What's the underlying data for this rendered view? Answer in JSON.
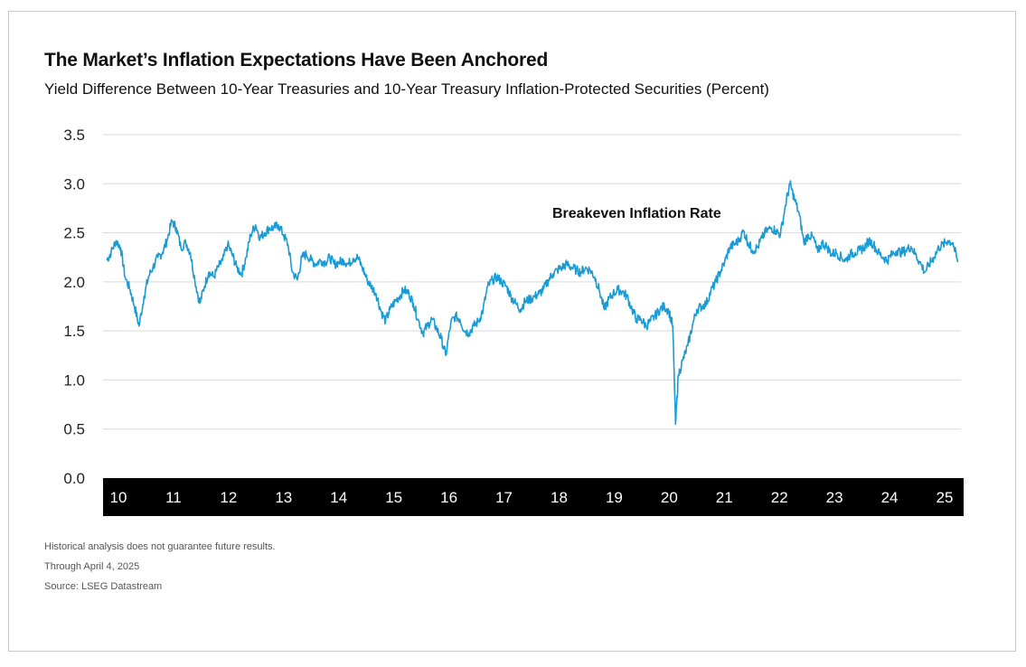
{
  "title": "The Market’s Inflation Expectations Have Been Anchored",
  "subtitle": "Yield Difference Between 10-Year Treasuries and 10-Year Treasury Inflation-Protected Securities (Percent)",
  "notes": {
    "disclaimer": "Historical analysis does not guarantee future results.",
    "through": "Through April 4, 2025",
    "source": "Source: LSEG Datastream"
  },
  "colors": {
    "line": "#1a9bd3",
    "axis_band": "#000000",
    "grid": "#d9d9d9"
  },
  "chart_data": {
    "type": "line",
    "title": "The Market’s Inflation Expectations Have Been Anchored",
    "subtitle": "Yield Difference Between 10-Year Treasuries and 10-Year Treasury Inflation-Protected Securities (Percent)",
    "ylabel": "",
    "xlabel": "",
    "ylim": [
      0,
      3.5
    ],
    "yticks": [
      "0.0",
      "0.5",
      "1.0",
      "1.5",
      "2.0",
      "2.5",
      "3.0",
      "3.5"
    ],
    "xticks": [
      "10",
      "11",
      "12",
      "13",
      "14",
      "15",
      "16",
      "17",
      "18",
      "19",
      "20",
      "21",
      "22",
      "23",
      "24",
      "25"
    ],
    "xlim": [
      2010.0,
      2025.3
    ],
    "grid": "horizontal",
    "series": [
      {
        "name": "Breakeven Inflation Rate",
        "x": [
          2010.0,
          2010.08,
          2010.17,
          2010.25,
          2010.33,
          2010.42,
          2010.5,
          2010.58,
          2010.67,
          2010.75,
          2010.83,
          2010.92,
          2011.0,
          2011.08,
          2011.17,
          2011.25,
          2011.33,
          2011.42,
          2011.5,
          2011.58,
          2011.67,
          2011.75,
          2011.83,
          2011.92,
          2012.0,
          2012.08,
          2012.17,
          2012.25,
          2012.33,
          2012.42,
          2012.5,
          2012.58,
          2012.67,
          2012.75,
          2012.83,
          2012.92,
          2013.0,
          2013.08,
          2013.17,
          2013.25,
          2013.33,
          2013.42,
          2013.5,
          2013.58,
          2013.67,
          2013.75,
          2013.83,
          2013.92,
          2014.0,
          2014.08,
          2014.17,
          2014.25,
          2014.33,
          2014.42,
          2014.5,
          2014.58,
          2014.67,
          2014.75,
          2014.83,
          2014.92,
          2015.0,
          2015.08,
          2015.17,
          2015.25,
          2015.33,
          2015.42,
          2015.5,
          2015.58,
          2015.67,
          2015.75,
          2015.83,
          2015.92,
          2016.0,
          2016.08,
          2016.17,
          2016.25,
          2016.33,
          2016.42,
          2016.5,
          2016.58,
          2016.67,
          2016.75,
          2016.83,
          2016.92,
          2017.0,
          2017.08,
          2017.17,
          2017.25,
          2017.33,
          2017.42,
          2017.5,
          2017.58,
          2017.67,
          2017.75,
          2017.83,
          2017.92,
          2018.0,
          2018.08,
          2018.17,
          2018.25,
          2018.33,
          2018.42,
          2018.5,
          2018.58,
          2018.67,
          2018.75,
          2018.83,
          2018.92,
          2019.0,
          2019.08,
          2019.17,
          2019.25,
          2019.33,
          2019.42,
          2019.5,
          2019.58,
          2019.67,
          2019.75,
          2019.83,
          2019.92,
          2020.0,
          2020.08,
          2020.15,
          2020.2,
          2020.25,
          2020.33,
          2020.42,
          2020.5,
          2020.58,
          2020.67,
          2020.75,
          2020.83,
          2020.92,
          2021.0,
          2021.08,
          2021.17,
          2021.25,
          2021.33,
          2021.42,
          2021.5,
          2021.58,
          2021.67,
          2021.75,
          2021.83,
          2021.92,
          2022.0,
          2022.08,
          2022.17,
          2022.25,
          2022.33,
          2022.42,
          2022.5,
          2022.58,
          2022.67,
          2022.75,
          2022.83,
          2022.92,
          2023.0,
          2023.08,
          2023.17,
          2023.25,
          2023.33,
          2023.42,
          2023.5,
          2023.58,
          2023.67,
          2023.75,
          2023.83,
          2023.92,
          2024.0,
          2024.08,
          2024.17,
          2024.25,
          2024.33,
          2024.42,
          2024.5,
          2024.58,
          2024.67,
          2024.75,
          2024.83,
          2024.92,
          2025.0,
          2025.08,
          2025.17,
          2025.26
        ],
        "y": [
          2.22,
          2.3,
          2.42,
          2.35,
          2.05,
          1.92,
          1.75,
          1.55,
          1.85,
          2.05,
          2.15,
          2.25,
          2.3,
          2.42,
          2.62,
          2.55,
          2.35,
          2.4,
          2.3,
          2.02,
          1.78,
          1.95,
          2.1,
          2.05,
          2.15,
          2.22,
          2.38,
          2.28,
          2.15,
          2.08,
          2.25,
          2.48,
          2.58,
          2.45,
          2.5,
          2.55,
          2.55,
          2.58,
          2.48,
          2.38,
          2.1,
          2.02,
          2.25,
          2.28,
          2.22,
          2.18,
          2.22,
          2.2,
          2.25,
          2.18,
          2.2,
          2.22,
          2.18,
          2.24,
          2.25,
          2.15,
          2.02,
          1.95,
          1.88,
          1.7,
          1.6,
          1.72,
          1.8,
          1.85,
          1.92,
          1.88,
          1.78,
          1.62,
          1.48,
          1.55,
          1.62,
          1.52,
          1.42,
          1.25,
          1.58,
          1.65,
          1.62,
          1.5,
          1.48,
          1.55,
          1.6,
          1.72,
          1.95,
          2.02,
          2.05,
          2.0,
          1.95,
          1.85,
          1.78,
          1.72,
          1.8,
          1.82,
          1.85,
          1.88,
          1.92,
          2.02,
          2.08,
          2.12,
          2.15,
          2.18,
          2.15,
          2.12,
          2.1,
          2.14,
          2.12,
          2.05,
          1.92,
          1.72,
          1.82,
          1.88,
          1.92,
          1.9,
          1.85,
          1.72,
          1.62,
          1.62,
          1.55,
          1.6,
          1.65,
          1.72,
          1.75,
          1.7,
          1.55,
          0.55,
          1.05,
          1.2,
          1.35,
          1.55,
          1.72,
          1.75,
          1.78,
          1.9,
          2.0,
          2.1,
          2.2,
          2.35,
          2.38,
          2.42,
          2.52,
          2.4,
          2.32,
          2.35,
          2.45,
          2.52,
          2.55,
          2.52,
          2.48,
          2.78,
          3.0,
          2.85,
          2.68,
          2.4,
          2.48,
          2.45,
          2.3,
          2.4,
          2.35,
          2.28,
          2.3,
          2.25,
          2.22,
          2.28,
          2.3,
          2.32,
          2.35,
          2.42,
          2.38,
          2.3,
          2.25,
          2.22,
          2.28,
          2.32,
          2.3,
          2.32,
          2.36,
          2.28,
          2.2,
          2.1,
          2.18,
          2.25,
          2.35,
          2.38,
          2.42,
          2.4,
          2.2
        ]
      }
    ],
    "annotations": [
      "Breakeven Inflation Rate"
    ]
  }
}
